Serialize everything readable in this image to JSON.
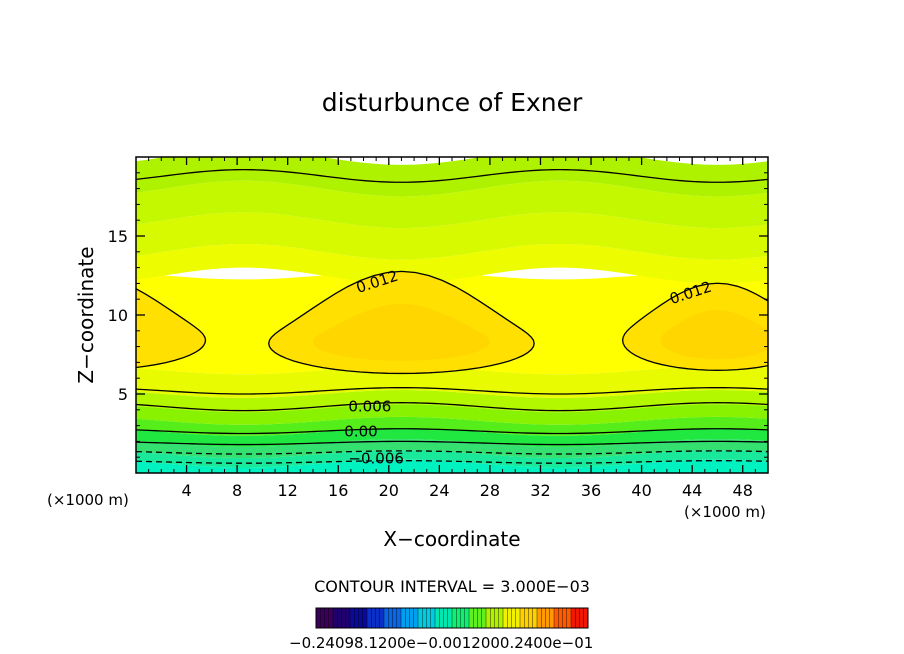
{
  "chart_data": {
    "type": "contour",
    "title": "disturbunce of Exner",
    "xlabel": "X−coordinate",
    "ylabel": "Z−coordinate",
    "x_unit_left": "(×1000 m)",
    "x_unit_right": "(×1000 m)",
    "xlim": [
      0,
      50
    ],
    "ylim": [
      0,
      20
    ],
    "xticks": [
      4,
      8,
      12,
      16,
      20,
      24,
      28,
      32,
      36,
      40,
      44,
      48
    ],
    "xtick_labels": [
      "4",
      "8",
      "12",
      "16",
      "20",
      "24",
      "28",
      "32",
      "36",
      "40",
      "44",
      "48"
    ],
    "yticks": [
      5,
      10,
      15
    ],
    "ytick_labels": [
      "5",
      "10",
      "15"
    ],
    "contour_interval_text": "CONTOUR INTERVAL = 3.000E−03",
    "contour_interval": 0.003,
    "contour_labels": [
      {
        "text": "0.012",
        "x": 19.2,
        "y": 11.8
      },
      {
        "text": "0.012",
        "x": 44.0,
        "y": 11.1
      },
      {
        "text": "0.006",
        "x": 18.5,
        "y": 3.9
      },
      {
        "text": "0.00",
        "x": 17.8,
        "y": 2.3
      },
      {
        "text": "−0.006",
        "x": 19.0,
        "y": 0.6
      }
    ],
    "fill_bands": [
      {
        "z0": 0.0,
        "z1": 0.6,
        "color": "#00f2c0"
      },
      {
        "z0": 0.6,
        "z1": 1.2,
        "color": "#1ae89a"
      },
      {
        "z0": 1.2,
        "z1": 1.9,
        "color": "#33e070"
      },
      {
        "z0": 1.9,
        "z1": 2.6,
        "color": "#20e840"
      },
      {
        "z0": 2.6,
        "z1": 3.3,
        "color": "#55ee1a"
      },
      {
        "z0": 3.3,
        "z1": 4.1,
        "color": "#88f200"
      },
      {
        "z0": 4.1,
        "z1": 5.0,
        "color": "#b4f800"
      },
      {
        "z0": 5.0,
        "z1": 6.5,
        "color": "#e8fb00"
      },
      {
        "z0": 6.5,
        "z1": 12.5,
        "color": "#ffff00"
      },
      {
        "z0": 12.5,
        "z1": 14.0,
        "color": "#eefc00"
      },
      {
        "z0": 14.0,
        "z1": 16.0,
        "color": "#d8fa00"
      },
      {
        "z0": 16.0,
        "z1": 18.0,
        "color": "#c4f800"
      },
      {
        "z0": 18.0,
        "z1": 20.0,
        "color": "#aef200"
      }
    ],
    "colorbar": {
      "labels_text": "−0.24098.1200e−0.0012000.2400e−01",
      "colors": [
        "#3a005a",
        "#20006e",
        "#0a0a9a",
        "#0a30c8",
        "#0a66e6",
        "#00a0f0",
        "#00cce0",
        "#00e8b0",
        "#10f070",
        "#60f020",
        "#b0f000",
        "#f0f000",
        "#ffd000",
        "#ff9a00",
        "#ff5a00",
        "#f01800"
      ]
    }
  },
  "colors": {
    "background": "#ffffff",
    "axis": "#000000",
    "warm_core": "#ffe000",
    "warm_inner": "#ffd600"
  }
}
